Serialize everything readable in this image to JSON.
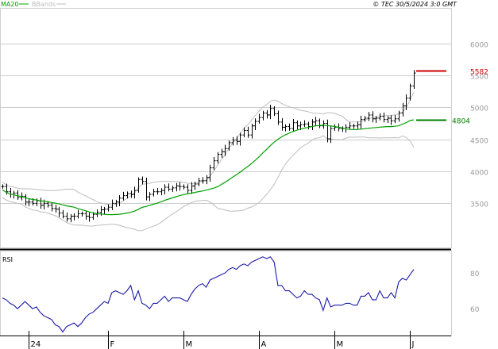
{
  "header": {
    "legend_ma": "MA20",
    "legend_bb": "BBands",
    "credit": "© TEC 30/5/2024 3:0 GMT"
  },
  "colors": {
    "ma": "#00a000",
    "bbands": "#bdbdbd",
    "price": "#000000",
    "rsi": "#1a1aa8",
    "red_level": "#cc0000",
    "green_level": "#008000",
    "grid": "#cccccc"
  },
  "chart_data": [
    {
      "type": "ohlc",
      "panel": "price",
      "ylim": [
        2800,
        6550
      ],
      "yticks": [
        3500,
        4000,
        4500,
        5000,
        5500,
        6000
      ],
      "ytick_labels": [
        "3500",
        "4000",
        "4500",
        "5000",
        "5500",
        "6000"
      ],
      "grid": true,
      "legend": [
        "MA20",
        "BBands"
      ],
      "legend_position": "top-left",
      "x_labels": [
        {
          "label": "24",
          "index": 7
        },
        {
          "label": "F",
          "index": 28
        },
        {
          "label": "M",
          "index": 48
        },
        {
          "label": "A",
          "index": 68
        },
        {
          "label": "M",
          "index": 88
        },
        {
          "label": "J",
          "index": 108
        }
      ],
      "x_count": 110,
      "close": [
        3760,
        3680,
        3640,
        3660,
        3590,
        3610,
        3520,
        3520,
        3500,
        3540,
        3470,
        3500,
        3470,
        3420,
        3410,
        3350,
        3300,
        3260,
        3300,
        3300,
        3340,
        3340,
        3300,
        3280,
        3330,
        3360,
        3400,
        3410,
        3440,
        3500,
        3520,
        3580,
        3620,
        3650,
        3640,
        3700,
        3870,
        3840,
        3600,
        3640,
        3680,
        3680,
        3700,
        3750,
        3720,
        3740,
        3770,
        3760,
        3750,
        3700,
        3770,
        3800,
        3850,
        3850,
        3900,
        4050,
        4160,
        4260,
        4300,
        4350,
        4440,
        4480,
        4460,
        4560,
        4630,
        4560,
        4700,
        4770,
        4830,
        4900,
        4870,
        4970,
        4890,
        4760,
        4680,
        4690,
        4660,
        4750,
        4700,
        4720,
        4730,
        4690,
        4760,
        4780,
        4700,
        4740,
        4500,
        4660,
        4680,
        4660,
        4660,
        4680,
        4700,
        4700,
        4720,
        4800,
        4820,
        4870,
        4810,
        4820,
        4850,
        4800,
        4820,
        4780,
        4810,
        4900,
        5010,
        5130,
        5320,
        5520
      ],
      "price_range": [
        3250,
        5540
      ],
      "indicators": {
        "ma20_last": 4804,
        "bbands_lower_min": 3150,
        "bbands_upper_max": 5050
      },
      "levels": [
        {
          "value": 5582,
          "label": "5582",
          "color": "#cc0000"
        },
        {
          "value": 4804,
          "label": "4804",
          "color": "#008000"
        }
      ]
    },
    {
      "type": "line",
      "panel": "rsi",
      "title": "RSI",
      "ylim": [
        45,
        92
      ],
      "yticks": [
        60,
        80
      ],
      "ytick_labels": [
        "60",
        "80"
      ],
      "grid": false,
      "series": [
        {
          "name": "RSI",
          "values": [
            66,
            65,
            63,
            62,
            60,
            62,
            64,
            62,
            60,
            61,
            58,
            56,
            55,
            54,
            51,
            50,
            47,
            50,
            51,
            52,
            50,
            52,
            55,
            57,
            58,
            60,
            62,
            64,
            63,
            69,
            70,
            69,
            68,
            70,
            73,
            65,
            70,
            63,
            62,
            60,
            63,
            63,
            65,
            67,
            64,
            66,
            66,
            66,
            65,
            64,
            68,
            71,
            73,
            74,
            72,
            76,
            77,
            78,
            79,
            80,
            82,
            83,
            82,
            84,
            85,
            84,
            86,
            87,
            88,
            89,
            88,
            89,
            86,
            73,
            73,
            70,
            70,
            68,
            66,
            67,
            70,
            68,
            68,
            66,
            65,
            59,
            66,
            61,
            62,
            62,
            62,
            63,
            63,
            62,
            62,
            67,
            67,
            69,
            65,
            65,
            70,
            66,
            66,
            69,
            66,
            75,
            77,
            76,
            79,
            82
          ]
        }
      ]
    }
  ]
}
